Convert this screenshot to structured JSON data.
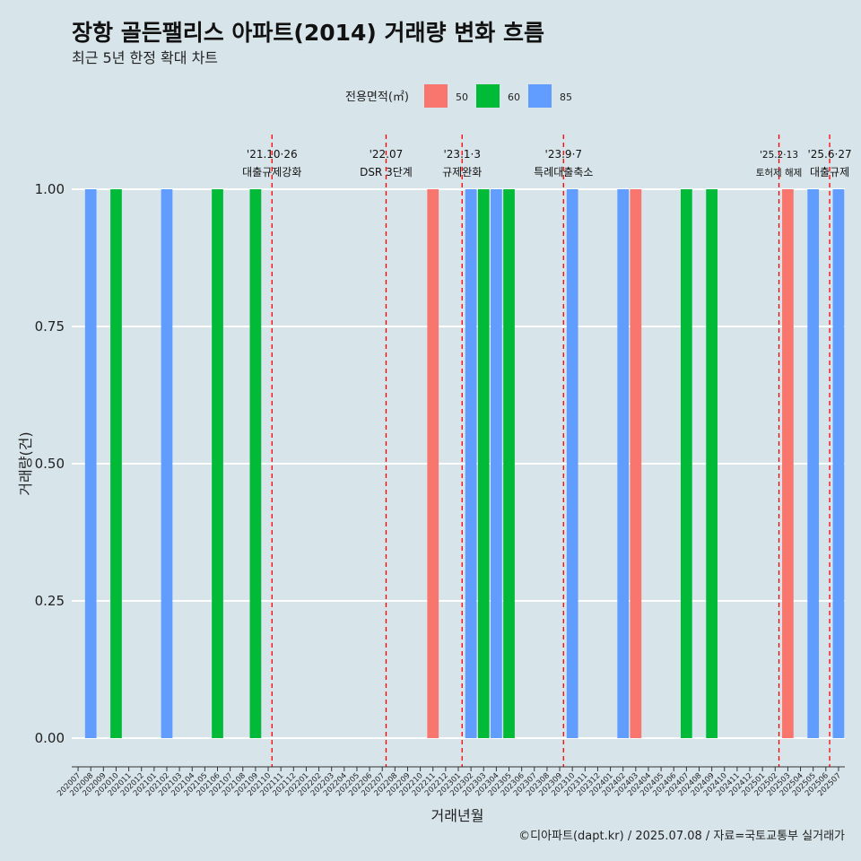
{
  "chart_data": {
    "type": "bar",
    "title": "장항 골든팰리스 아파트(2014) 거래량 변화 흐름",
    "subtitle": "최근 5년 한정 확대 차트",
    "xlabel": "거래년월",
    "ylabel": "거래량(건)",
    "ylim": [
      0,
      1
    ],
    "yticks": [
      "0.00",
      "0.25",
      "0.50",
      "0.75",
      "1.00"
    ],
    "caption": "©디아파트(dapt.kr) / 2025.07.08 / 자료=국토교통부 실거래가",
    "legend": {
      "title": "전용면적(㎡)",
      "position": "top",
      "items": [
        {
          "label": "50",
          "color": "#f8766d"
        },
        {
          "label": "60",
          "color": "#00ba38"
        },
        {
          "label": "85",
          "color": "#619cff"
        }
      ]
    },
    "categories": [
      "202007",
      "202008",
      "202009",
      "202010",
      "202011",
      "202012",
      "202101",
      "202102",
      "202103",
      "202104",
      "202105",
      "202106",
      "202107",
      "202108",
      "202109",
      "202110",
      "202111",
      "202112",
      "202201",
      "202202",
      "202203",
      "202204",
      "202205",
      "202206",
      "202207",
      "202208",
      "202209",
      "202210",
      "202211",
      "202212",
      "202301",
      "202302",
      "202303",
      "202304",
      "202305",
      "202306",
      "202307",
      "202308",
      "202309",
      "202310",
      "202311",
      "202312",
      "202401",
      "202402",
      "202403",
      "202404",
      "202405",
      "202406",
      "202407",
      "202408",
      "202409",
      "202410",
      "202411",
      "202412",
      "202501",
      "202502",
      "202503",
      "202504",
      "202505",
      "202506",
      "202507"
    ],
    "bars": [
      {
        "month": "202008",
        "area": "85",
        "value": 1
      },
      {
        "month": "202010",
        "area": "60",
        "value": 1
      },
      {
        "month": "202102",
        "area": "85",
        "value": 1
      },
      {
        "month": "202106",
        "area": "60",
        "value": 1
      },
      {
        "month": "202109",
        "area": "60",
        "value": 1
      },
      {
        "month": "202211",
        "area": "50",
        "value": 1
      },
      {
        "month": "202302",
        "area": "85",
        "value": 1
      },
      {
        "month": "202303",
        "area": "60",
        "value": 1
      },
      {
        "month": "202304",
        "area": "85",
        "value": 1
      },
      {
        "month": "202305",
        "area": "60",
        "value": 1
      },
      {
        "month": "202310",
        "area": "85",
        "value": 1
      },
      {
        "month": "202402",
        "area": "85",
        "value": 1
      },
      {
        "month": "202403",
        "area": "50",
        "value": 1
      },
      {
        "month": "202407",
        "area": "60",
        "value": 1
      },
      {
        "month": "202409",
        "area": "60",
        "value": 1
      },
      {
        "month": "202503",
        "area": "50",
        "value": 1
      },
      {
        "month": "202505",
        "area": "85",
        "value": 1
      },
      {
        "month": "202507",
        "area": "85",
        "value": 1
      }
    ],
    "annotations": [
      {
        "x": 15.3,
        "line1": "'21.10·26",
        "line2": "대출규제강화"
      },
      {
        "x": 24.3,
        "line1": "'22.07",
        "line2": "DSR 3단계"
      },
      {
        "x": 30.3,
        "line1": "'23.1·3",
        "line2": "규제완화"
      },
      {
        "x": 38.3,
        "line1": "'23.9·7",
        "line2": "특례대출축소"
      },
      {
        "x": 55.3,
        "line1": "'25.2·13",
        "line2": "토허제 해제",
        "small": true
      },
      {
        "x": 59.3,
        "line1": "'25.6·27",
        "line2": "대출규제"
      }
    ],
    "grid": true
  }
}
